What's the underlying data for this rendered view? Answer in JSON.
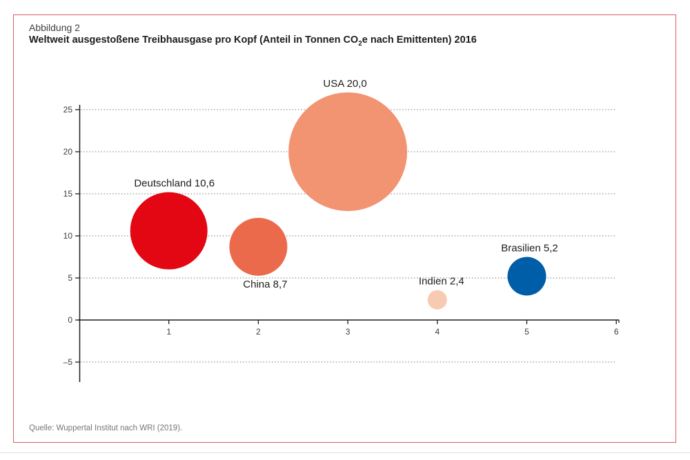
{
  "figure": {
    "label": "Abbildung 2",
    "title_pre": "Weltweit ausgestoßene Treibhausgase pro Kopf (Anteil in Tonnen CO",
    "title_sub": "2",
    "title_post": "e nach Emittenten) 2016",
    "source": "Quelle: Wuppertal Institut nach WRI (2019)."
  },
  "colors": {
    "frame": "#d95b69",
    "grid": "#8a8a8a",
    "axis": "#1d1d1b",
    "tick_label": "#3c3c3c",
    "bubble_label": "#1d1d1b"
  },
  "chart_data": {
    "type": "scatter",
    "subtype": "bubble",
    "title": "Weltweit ausgestoßene Treibhausgase pro Kopf (Anteil in Tonnen CO2e nach Emittenten) 2016",
    "xlabel": "",
    "ylabel": "",
    "xlim": [
      0,
      6.05
    ],
    "ylim": [
      -7.5,
      25.6
    ],
    "grid": "horizontal-dotted",
    "legend": "none",
    "x_ticks": [
      1,
      2,
      3,
      4,
      5,
      6
    ],
    "x_tick_labels": [
      "1",
      "2",
      "3",
      "4",
      "5",
      "6"
    ],
    "y_ticks": [
      25,
      20,
      15,
      10,
      5,
      0,
      -5
    ],
    "y_tick_labels": [
      "25",
      "20",
      "15",
      "10",
      "5",
      "0",
      "–5"
    ],
    "points": [
      {
        "name": "Deutschland",
        "label_text": "Deutschland 10,6",
        "x": 1,
        "y": 10.6,
        "radius_px": 56,
        "color": "#e30613",
        "label_placement": "above",
        "label_dx": 8
      },
      {
        "name": "China",
        "label_text": "China 8,7",
        "x": 2,
        "y": 8.7,
        "radius_px": 42,
        "color": "#eb6a4b",
        "label_placement": "below",
        "label_dx": 10
      },
      {
        "name": "USA",
        "label_text": "USA 20,0",
        "x": 3,
        "y": 20.0,
        "radius_px": 86,
        "color": "#f29372",
        "label_placement": "above",
        "label_dx": -4
      },
      {
        "name": "Indien",
        "label_text": "Indien 2,4",
        "x": 4,
        "y": 2.4,
        "radius_px": 14,
        "color": "#f8cab1",
        "label_placement": "above",
        "label_dx": 6
      },
      {
        "name": "Brasilien",
        "label_text": "Brasilien 5,2",
        "x": 5,
        "y": 5.2,
        "radius_px": 28,
        "color": "#005ea8",
        "label_placement": "above",
        "label_dx": 4
      }
    ]
  }
}
